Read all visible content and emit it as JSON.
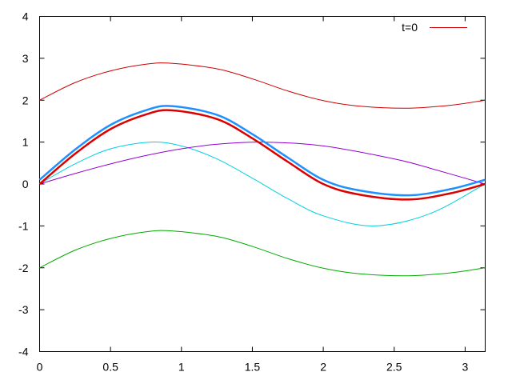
{
  "chart_data": {
    "type": "line",
    "xlim": [
      0,
      3.14159
    ],
    "ylim": [
      -4,
      4
    ],
    "xticks": [
      0,
      0.5,
      1,
      1.5,
      2,
      2.5,
      3
    ],
    "xtick_labels": [
      "0",
      "0.5",
      "1",
      "1.5",
      "2",
      "2.5",
      "3"
    ],
    "yticks": [
      -4,
      -3,
      -2,
      -1,
      0,
      1,
      2,
      3,
      4
    ],
    "ytick_labels": [
      "-4",
      "-3",
      "-2",
      "-1",
      "0",
      "1",
      "2",
      "3",
      "4"
    ],
    "grid": false,
    "legend": {
      "position": "top-right",
      "entry": "t=0",
      "color": "#cc0000"
    },
    "series": [
      {
        "name": "t=0",
        "color": "#cc0000",
        "width": 1,
        "x": [
          0,
          0.25,
          0.5,
          0.75,
          0.93,
          1.25,
          1.5,
          1.75,
          2.0,
          2.25,
          2.6,
          2.9,
          3.14
        ],
        "y": [
          2.0,
          2.42,
          2.7,
          2.86,
          2.88,
          2.75,
          2.51,
          2.22,
          1.99,
          1.86,
          1.81,
          1.88,
          2.0
        ]
      },
      {
        "color": "#00aa00",
        "width": 1,
        "x": [
          0,
          0.25,
          0.5,
          0.75,
          0.93,
          1.25,
          1.5,
          1.75,
          2.0,
          2.25,
          2.6,
          2.9,
          3.14
        ],
        "y": [
          -2.0,
          -1.58,
          -1.3,
          -1.14,
          -1.12,
          -1.25,
          -1.49,
          -1.78,
          -2.01,
          -2.14,
          -2.19,
          -2.12,
          -2.0
        ]
      },
      {
        "color": "#00d0e0",
        "width": 1,
        "x": [
          0,
          0.25,
          0.5,
          0.785,
          1.0,
          1.25,
          1.5,
          1.75,
          2.0,
          2.356,
          2.75,
          3.14
        ],
        "y": [
          0,
          0.48,
          0.84,
          1.0,
          0.91,
          0.6,
          0.14,
          -0.35,
          -0.76,
          -1.0,
          -0.71,
          0.0
        ]
      },
      {
        "color": "#9400d3",
        "width": 1,
        "x": [
          0,
          0.25,
          0.5,
          0.75,
          1.0,
          1.25,
          1.571,
          2.0,
          2.5,
          2.75,
          3.14
        ],
        "y": [
          0,
          0.25,
          0.48,
          0.68,
          0.84,
          0.95,
          1.0,
          0.91,
          0.6,
          0.38,
          0.0
        ]
      },
      {
        "color": "#dd0000",
        "width": 2.5,
        "x": [
          0,
          0.25,
          0.5,
          0.75,
          0.93,
          1.25,
          1.5,
          1.75,
          2.0,
          2.25,
          2.6,
          2.9,
          3.14
        ],
        "y": [
          0,
          0.72,
          1.31,
          1.66,
          1.76,
          1.55,
          1.09,
          0.53,
          0.0,
          -0.25,
          -0.37,
          -0.22,
          0.0
        ]
      },
      {
        "color": "#1e90ff",
        "width": 2.5,
        "x": [
          0,
          0.25,
          0.5,
          0.75,
          0.93,
          1.25,
          1.5,
          1.75,
          2.0,
          2.25,
          2.6,
          2.9,
          3.14
        ],
        "y": [
          0.1,
          0.82,
          1.41,
          1.76,
          1.86,
          1.65,
          1.19,
          0.63,
          0.1,
          -0.15,
          -0.27,
          -0.12,
          0.1
        ]
      }
    ]
  }
}
